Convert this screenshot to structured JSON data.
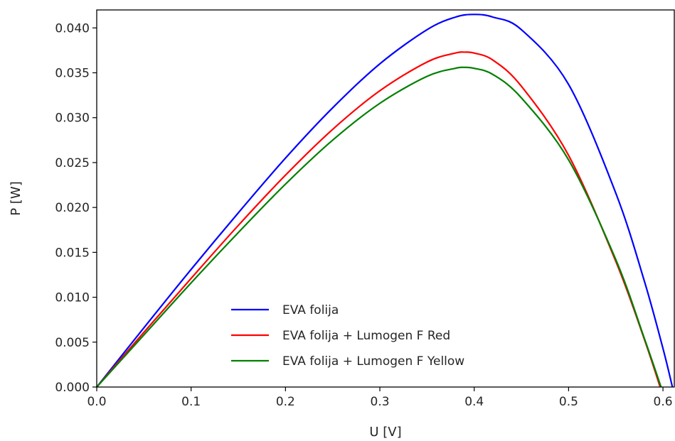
{
  "chart_data": {
    "type": "line",
    "title": "",
    "xlabel": "U [V]",
    "ylabel": "P [W]",
    "xlim": [
      0.0,
      0.612
    ],
    "ylim": [
      0.0,
      0.042
    ],
    "xticks": [
      "0.0",
      "0.1",
      "0.2",
      "0.3",
      "0.4",
      "0.5",
      "0.6"
    ],
    "yticks": [
      "0.000",
      "0.005",
      "0.010",
      "0.015",
      "0.020",
      "0.025",
      "0.030",
      "0.035",
      "0.040"
    ],
    "grid": false,
    "legend_position": "lower-center",
    "series": [
      {
        "name": "EVA folija",
        "color": "#0000ff",
        "x": [
          0.0,
          0.05,
          0.1,
          0.15,
          0.2,
          0.25,
          0.3,
          0.35,
          0.38,
          0.4,
          0.42,
          0.45,
          0.5,
          0.55,
          0.58,
          0.6,
          0.61
        ],
        "y": [
          0.0,
          0.0066,
          0.0131,
          0.0194,
          0.0255,
          0.0311,
          0.036,
          0.0398,
          0.0412,
          0.0415,
          0.0412,
          0.0398,
          0.0337,
          0.0216,
          0.0119,
          0.0043,
          0.0
        ]
      },
      {
        "name": "EVA folija + Lumogen F Red",
        "color": "#ff0000",
        "x": [
          0.0,
          0.05,
          0.1,
          0.15,
          0.2,
          0.25,
          0.3,
          0.35,
          0.38,
          0.39,
          0.4,
          0.42,
          0.45,
          0.5,
          0.55,
          0.58,
          0.597
        ],
        "y": [
          0.0,
          0.0061,
          0.0121,
          0.018,
          0.0236,
          0.0287,
          0.033,
          0.0362,
          0.0372,
          0.0373,
          0.0372,
          0.0364,
          0.0335,
          0.0258,
          0.014,
          0.0054,
          0.0
        ]
      },
      {
        "name": "EVA folija + Lumogen F Yellow",
        "color": "#008000",
        "x": [
          0.0,
          0.05,
          0.1,
          0.15,
          0.2,
          0.25,
          0.3,
          0.35,
          0.38,
          0.39,
          0.4,
          0.42,
          0.45,
          0.5,
          0.55,
          0.58,
          0.598
        ],
        "y": [
          0.0,
          0.0058,
          0.0116,
          0.0172,
          0.0226,
          0.0275,
          0.0316,
          0.0346,
          0.0355,
          0.0356,
          0.0355,
          0.0348,
          0.0322,
          0.0253,
          0.0142,
          0.0055,
          0.0
        ]
      }
    ]
  }
}
